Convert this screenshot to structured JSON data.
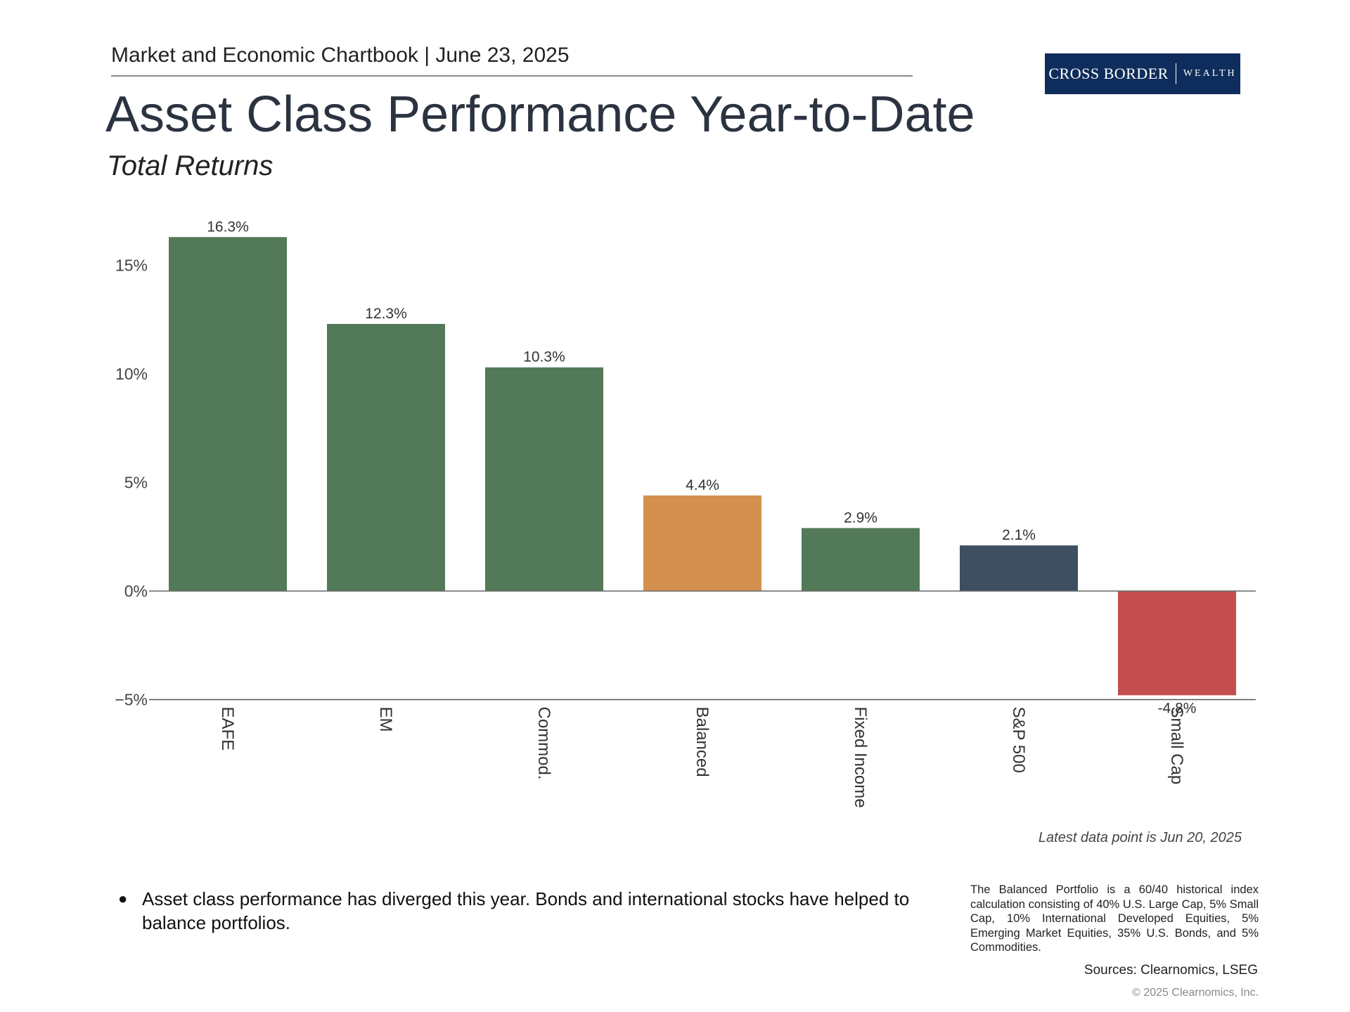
{
  "header": {
    "chartbook": "Market and Economic Chartbook | June 23, 2025",
    "title": "Asset Class Performance Year-to-Date",
    "subtitle": "Total Returns"
  },
  "logo": {
    "main": "CROSS BORDER",
    "sub": "WEALTH"
  },
  "chart_data": {
    "type": "bar",
    "title": "Asset Class Performance Year-to-Date",
    "subtitle": "Total Returns",
    "categories": [
      "EAFE",
      "EM",
      "Commod.",
      "Balanced",
      "Fixed Income",
      "S&P 500",
      "Small Cap"
    ],
    "values": [
      16.3,
      12.3,
      10.3,
      4.4,
      2.9,
      2.1,
      -4.8
    ],
    "value_labels": [
      "16.3%",
      "12.3%",
      "10.3%",
      "4.4%",
      "2.9%",
      "2.1%",
      "-4.8%"
    ],
    "colors": [
      "#527a58",
      "#527a58",
      "#527a58",
      "#d4904e",
      "#527a58",
      "#3d4f61",
      "#c44e4e"
    ],
    "yticks": [
      15,
      10,
      5,
      0,
      -5
    ],
    "ytick_labels": [
      "15%",
      "10%",
      "5%",
      "0%",
      "−5%"
    ],
    "ylim": [
      -6,
      17
    ],
    "xlabel": "",
    "ylabel": "",
    "grid": false,
    "legend": "none"
  },
  "notes": {
    "data_point": "Latest data point is Jun 20, 2025",
    "bullet": "Asset class performance has diverged this year. Bonds and international stocks have helped to balance portfolios.",
    "balanced_def": "The Balanced Portfolio is a 60/40 historical index calculation consisting of 40% U.S. Large Cap, 5% Small Cap, 10% International Developed Equities, 5% Emerging Market Equities, 35% U.S. Bonds, and 5% Commodities.",
    "sources": "Sources: Clearnomics, LSEG",
    "copyright": "© 2025 Clearnomics, Inc."
  }
}
